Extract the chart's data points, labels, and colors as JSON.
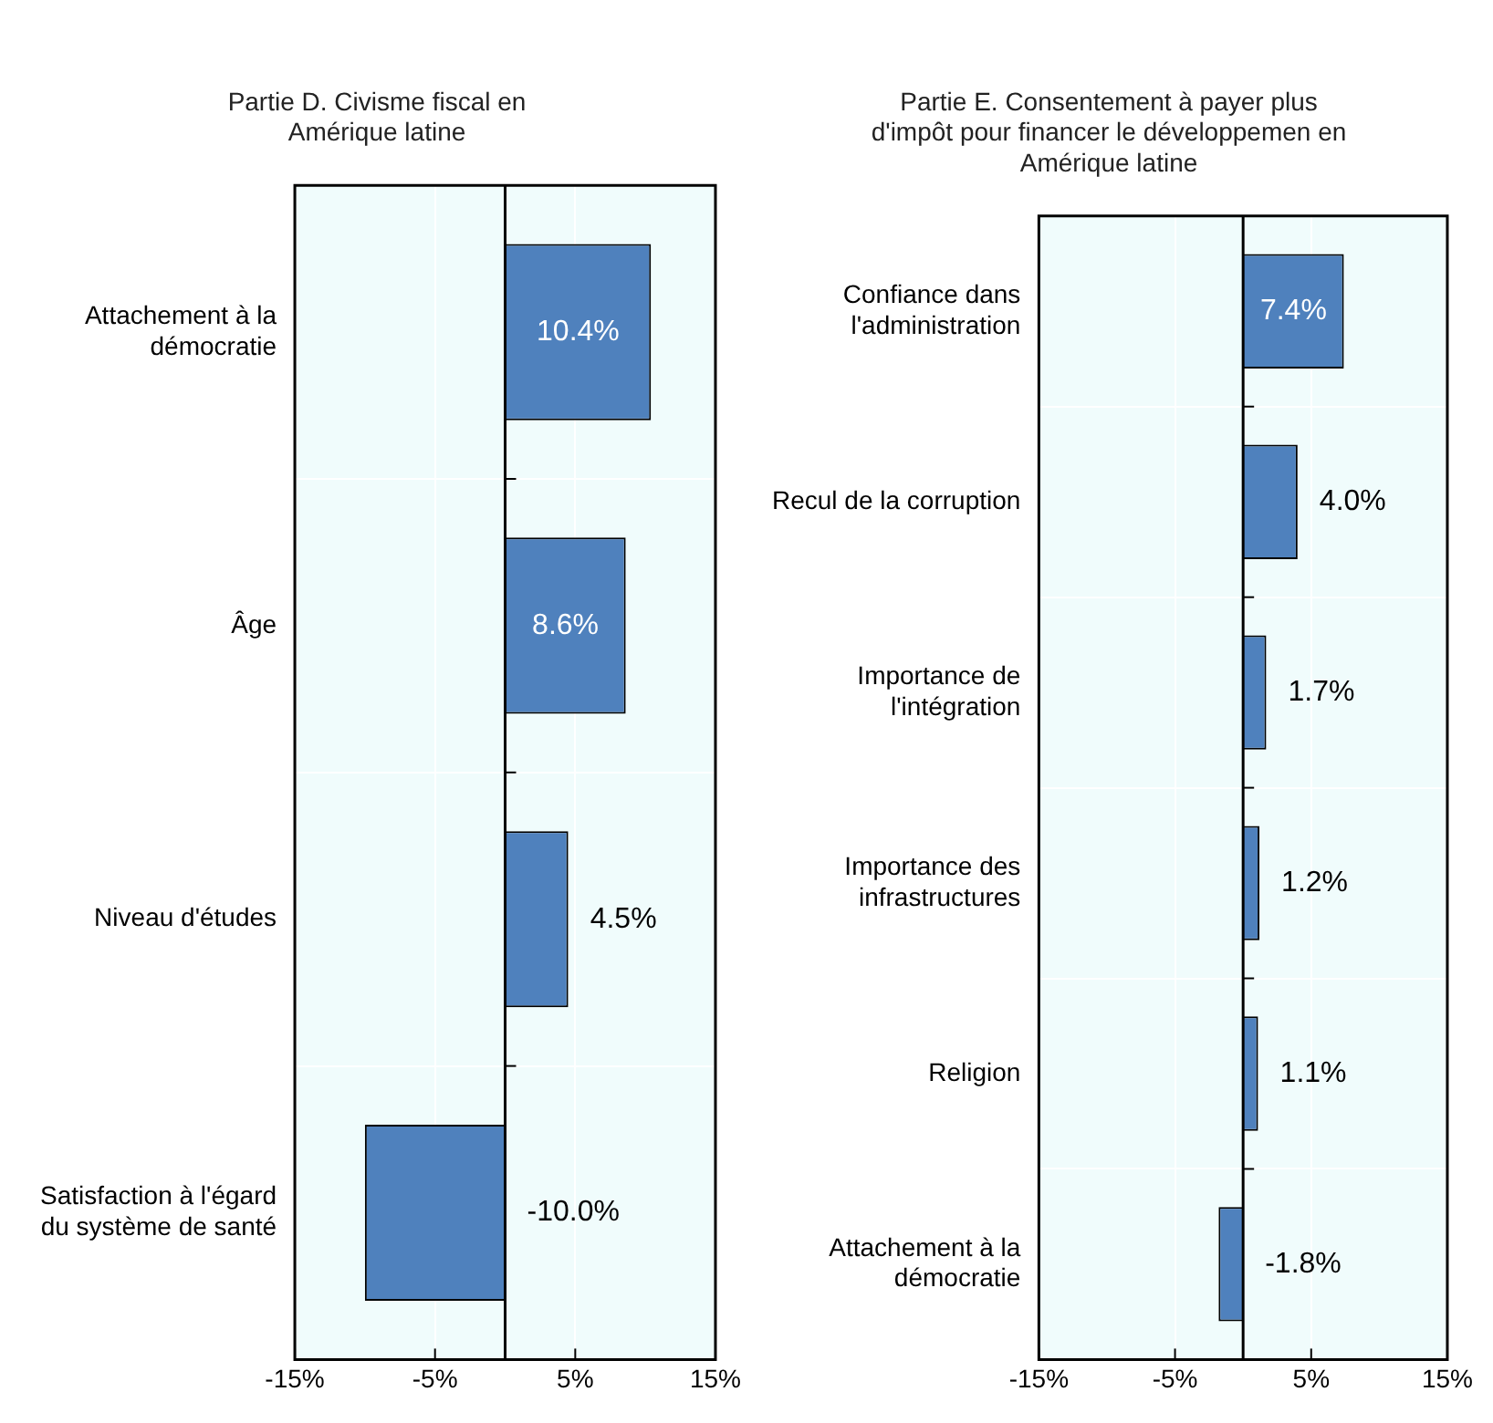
{
  "chart_data": [
    {
      "type": "bar",
      "orientation": "horizontal",
      "title": "Partie D. Civisme fiscal en Amérique latine",
      "categories": [
        "Attachement à la démocratie",
        "Âge",
        "Niveau d'études",
        "Satisfaction à l'égard du système de santé"
      ],
      "values": [
        10.4,
        8.6,
        4.5,
        -10.0
      ],
      "value_labels": [
        "10.4%",
        "8.6%",
        "4.5%",
        "-10.0%"
      ],
      "color": "#4f81bd",
      "xlim": [
        -15,
        15
      ],
      "xticks": [
        {
          "value": -15,
          "label": "-15%"
        },
        {
          "value": -5,
          "label": "-5%"
        },
        {
          "value": 5,
          "label": "5%"
        },
        {
          "value": 15,
          "label": "15%"
        }
      ],
      "grid": true,
      "legend": false
    },
    {
      "type": "bar",
      "orientation": "horizontal",
      "title": "Partie E. Consentement à payer plus d'impôt pour financer le développemen en Amérique latine",
      "categories": [
        "Confiance dans l'administration",
        "Recul de la corruption",
        "Importance de l'intégration",
        "Importance des infrastructures",
        "Religion",
        "Attachement à la démocratie"
      ],
      "values": [
        7.4,
        4.0,
        1.7,
        1.2,
        1.1,
        -1.8
      ],
      "value_labels": [
        "7.4%",
        "4.0%",
        "1.7%",
        "1.2%",
        "1.1%",
        "-1.8%"
      ],
      "color": "#4f81bd",
      "xlim": [
        -15,
        15
      ],
      "xticks": [
        {
          "value": -15,
          "label": "-15%"
        },
        {
          "value": -5,
          "label": "-5%"
        },
        {
          "value": 5,
          "label": "5%"
        },
        {
          "value": 15,
          "label": "15%"
        }
      ],
      "grid": true,
      "legend": false
    }
  ]
}
